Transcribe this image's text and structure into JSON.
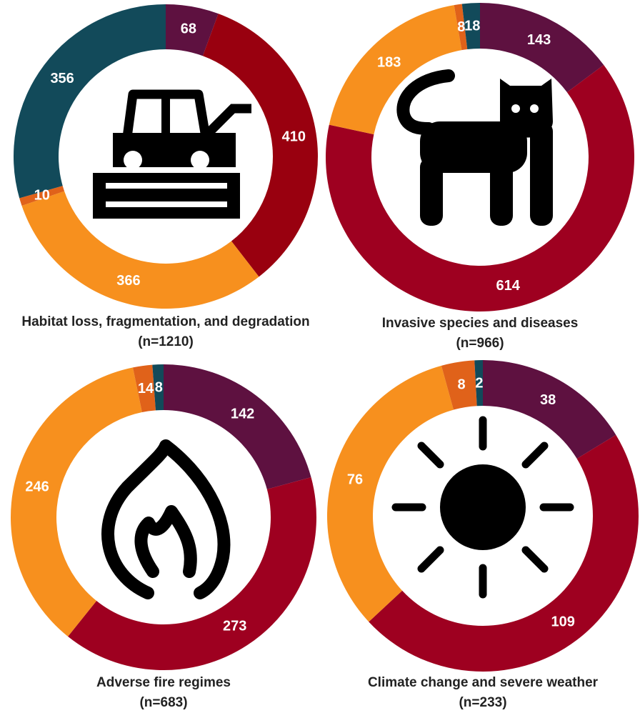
{
  "chart_data": [
    {
      "type": "donut",
      "title": "Habitat loss, fragmentation, and degradation",
      "subtitle": "(n=1210)",
      "values": [
        68,
        410,
        366,
        10,
        356
      ],
      "colors": [
        "#5e1140",
        "#99000f",
        "#f7901e",
        "#e0621a",
        "#124a5a"
      ]
    },
    {
      "type": "donut",
      "title": "Invasive species and diseases",
      "subtitle": "(n=966)",
      "values": [
        143,
        614,
        183,
        8,
        18
      ],
      "colors": [
        "#5e1140",
        "#9e0020",
        "#f7901e",
        "#e0621a",
        "#124a5a"
      ]
    },
    {
      "type": "donut",
      "title": "Adverse fire regimes",
      "subtitle": "(n=683)",
      "values": [
        142,
        273,
        246,
        14,
        8
      ],
      "colors": [
        "#5e1140",
        "#9e0020",
        "#f7901e",
        "#e0621a",
        "#124a5a"
      ]
    },
    {
      "type": "donut",
      "title": "Climate change and severe weather",
      "subtitle": "(n=233)",
      "values": [
        38,
        109,
        76,
        8,
        2
      ],
      "colors": [
        "#5e1140",
        "#9e0020",
        "#f7901e",
        "#e0621a",
        "#124a5a"
      ]
    }
  ]
}
